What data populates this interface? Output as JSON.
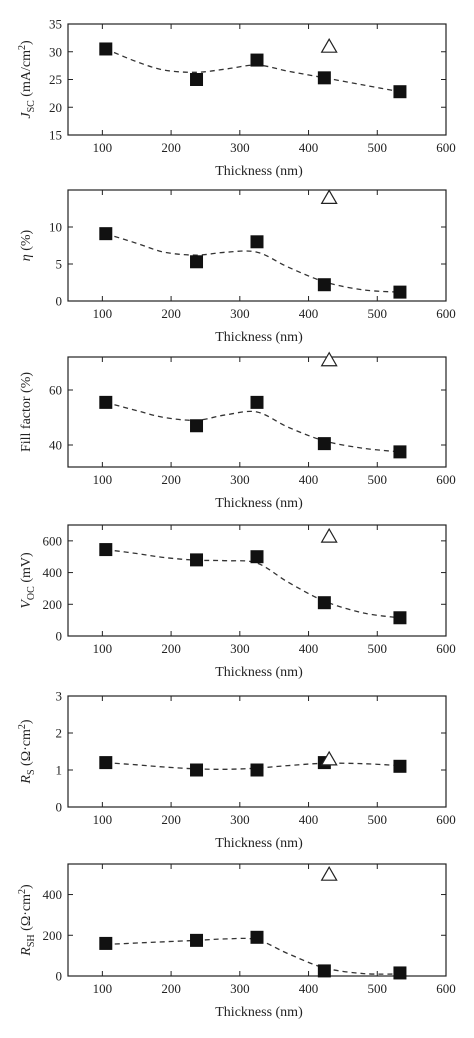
{
  "chart_data": [
    {
      "type": "scatter",
      "ylabel": {
        "base": "J",
        "sub": "SC",
        "unit_pre": " (mA/cm",
        "sup": "2",
        "unit_post": ")"
      },
      "xlabel": "Thickness (nm)",
      "xlim": [
        50,
        600
      ],
      "ylim": [
        15,
        35
      ],
      "xticks": [
        100,
        200,
        300,
        400,
        500,
        600
      ],
      "yticks": [
        15,
        20,
        25,
        30,
        35
      ],
      "grid": false,
      "series": [
        {
          "marker": "filled-square",
          "x": [
            105,
            237,
            325,
            423,
            533
          ],
          "y": [
            30.5,
            25.0,
            28.5,
            25.3,
            22.8
          ]
        },
        {
          "marker": "open-triangle",
          "x": [
            430
          ],
          "y": [
            31.0
          ]
        }
      ],
      "fit": {
        "style": "dashed",
        "x": [
          105,
          150,
          190,
          237,
          280,
          325,
          370,
          423,
          480,
          533
        ],
        "y": [
          30.5,
          28.2,
          26.7,
          26.3,
          26.9,
          27.6,
          26.5,
          25.3,
          24.0,
          22.8
        ]
      }
    },
    {
      "type": "scatter",
      "ylabel": {
        "base": "η",
        "sub": "",
        "unit_pre": " (%)",
        "sup": "",
        "unit_post": ""
      },
      "xlabel": "Thickness (nm)",
      "xlim": [
        50,
        600
      ],
      "ylim": [
        0,
        15
      ],
      "xticks": [
        100,
        200,
        300,
        400,
        500,
        600
      ],
      "yticks": [
        0,
        5,
        10
      ],
      "grid": false,
      "series": [
        {
          "marker": "filled-square",
          "x": [
            105,
            237,
            325,
            423,
            533
          ],
          "y": [
            9.1,
            5.3,
            8.0,
            2.2,
            1.2
          ]
        },
        {
          "marker": "open-triangle",
          "x": [
            430
          ],
          "y": [
            14.0
          ]
        }
      ],
      "fit": {
        "style": "dashed",
        "x": [
          105,
          150,
          190,
          237,
          280,
          325,
          370,
          423,
          480,
          533
        ],
        "y": [
          9.1,
          7.8,
          6.6,
          6.2,
          6.6,
          6.6,
          4.6,
          2.6,
          1.5,
          1.2
        ]
      }
    },
    {
      "type": "scatter",
      "ylabel": {
        "base": "Fill factor",
        "sub": "",
        "unit_pre": " (%)",
        "sup": "",
        "unit_post": ""
      },
      "xlabel": "Thickness (nm)",
      "xlim": [
        50,
        600
      ],
      "ylim": [
        32,
        72
      ],
      "xticks": [
        100,
        200,
        300,
        400,
        500,
        600
      ],
      "yticks": [
        40,
        60
      ],
      "grid": false,
      "series": [
        {
          "marker": "filled-square",
          "x": [
            105,
            237,
            325,
            423,
            533
          ],
          "y": [
            55.5,
            47.0,
            55.5,
            40.5,
            37.5
          ]
        },
        {
          "marker": "open-triangle",
          "x": [
            430
          ],
          "y": [
            71.0
          ]
        }
      ],
      "fit": {
        "style": "dashed",
        "x": [
          105,
          150,
          190,
          237,
          280,
          325,
          370,
          423,
          480,
          533
        ],
        "y": [
          55.5,
          52.5,
          50.0,
          49.0,
          51.0,
          52.0,
          46.5,
          41.5,
          38.8,
          37.5
        ]
      }
    },
    {
      "type": "scatter",
      "ylabel": {
        "base": "V",
        "sub": "OC",
        "unit_pre": " (mV)",
        "sup": "",
        "unit_post": ""
      },
      "xlabel": "Thickness (nm)",
      "xlim": [
        50,
        600
      ],
      "ylim": [
        0,
        700
      ],
      "xticks": [
        100,
        200,
        300,
        400,
        500,
        600
      ],
      "yticks": [
        0,
        200,
        400,
        600
      ],
      "grid": false,
      "series": [
        {
          "marker": "filled-square",
          "x": [
            105,
            237,
            325,
            423,
            533
          ],
          "y": [
            545,
            480,
            500,
            210,
            115
          ]
        },
        {
          "marker": "open-triangle",
          "x": [
            430
          ],
          "y": [
            630
          ]
        }
      ],
      "fit": {
        "style": "dashed",
        "x": [
          105,
          150,
          190,
          237,
          280,
          325,
          370,
          423,
          480,
          533
        ],
        "y": [
          545,
          520,
          495,
          478,
          475,
          460,
          340,
          220,
          145,
          115
        ]
      }
    },
    {
      "type": "scatter",
      "ylabel": {
        "base": "R",
        "sub": "S",
        "unit_pre": " (Ω·cm",
        "sup": "2",
        "unit_post": ")"
      },
      "xlabel": "Thickness (nm)",
      "xlim": [
        50,
        600
      ],
      "ylim": [
        0,
        3
      ],
      "xticks": [
        100,
        200,
        300,
        400,
        500,
        600
      ],
      "yticks": [
        0,
        1,
        2,
        3
      ],
      "grid": false,
      "series": [
        {
          "marker": "filled-square",
          "x": [
            105,
            237,
            325,
            423,
            533
          ],
          "y": [
            1.2,
            1.0,
            1.0,
            1.2,
            1.1
          ]
        },
        {
          "marker": "open-triangle",
          "x": [
            430
          ],
          "y": [
            1.3
          ]
        }
      ],
      "fit": {
        "style": "dashed",
        "x": [
          105,
          150,
          190,
          237,
          280,
          325,
          370,
          423,
          480,
          533
        ],
        "y": [
          1.2,
          1.14,
          1.08,
          1.03,
          1.02,
          1.05,
          1.12,
          1.18,
          1.17,
          1.12
        ]
      }
    },
    {
      "type": "scatter",
      "ylabel": {
        "base": "R",
        "sub": "SH",
        "unit_pre": " (Ω·cm",
        "sup": "2",
        "unit_post": ")"
      },
      "xlabel": "Thickness (nm)",
      "xlim": [
        50,
        600
      ],
      "ylim": [
        0,
        550
      ],
      "xticks": [
        100,
        200,
        300,
        400,
        500,
        600
      ],
      "yticks": [
        0,
        200,
        400
      ],
      "grid": false,
      "series": [
        {
          "marker": "filled-square",
          "x": [
            105,
            237,
            325,
            423,
            533
          ],
          "y": [
            160,
            175,
            190,
            25,
            15
          ]
        },
        {
          "marker": "open-triangle",
          "x": [
            430
          ],
          "y": [
            500
          ]
        }
      ],
      "fit": {
        "style": "dashed",
        "x": [
          105,
          150,
          190,
          237,
          280,
          325,
          370,
          423,
          480,
          533
        ],
        "y": [
          155,
          162,
          168,
          175,
          182,
          178,
          110,
          40,
          12,
          10
        ]
      }
    }
  ]
}
